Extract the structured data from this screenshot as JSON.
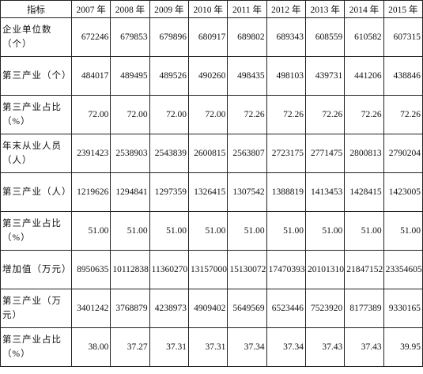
{
  "table": {
    "header": [
      "指标",
      "2007 年",
      "2008 年",
      "2009 年",
      "2010 年",
      "2011 年",
      "2012 年",
      "2013 年",
      "2014 年",
      "2015 年"
    ],
    "rows": [
      [
        "企业单位数（个）",
        "672246",
        "679853",
        "679896",
        "680917",
        "689802",
        "689343",
        "608559",
        "610582",
        "607315"
      ],
      [
        "第三产业（个）",
        "484017",
        "489495",
        "489526",
        "490260",
        "498435",
        "498103",
        "439731",
        "441206",
        "438846"
      ],
      [
        "第三产业占比（%）",
        "72.00",
        "72.00",
        "72.00",
        "72.00",
        "72.26",
        "72.26",
        "72.26",
        "72.26",
        "72.26"
      ],
      [
        "年末从业人员（人）",
        "2391423",
        "2538903",
        "2543839",
        "2600815",
        "2563807",
        "2723175",
        "2771475",
        "2800813",
        "2790204"
      ],
      [
        "第三产业（人）",
        "1219626",
        "1294841",
        "1297359",
        "1326415",
        "1307542",
        "1388819",
        "1413453",
        "1428415",
        "1423005"
      ],
      [
        "第三产业占比（%）",
        "51.00",
        "51.00",
        "51.00",
        "51.00",
        "51.00",
        "51.00",
        "51.00",
        "51.00",
        "51.00"
      ],
      [
        "增加值（万元）",
        "8950635",
        "10112838",
        "11360270",
        "13157000",
        "15130072",
        "17470393",
        "20101310",
        "21847152",
        "23354605"
      ],
      [
        "第三产业（万元）",
        "3401242",
        "3768879",
        "4238973",
        "4909402",
        "5649569",
        "6523446",
        "7523920",
        "8177389",
        "9330165"
      ],
      [
        "第三产业占比（%）",
        "38.00",
        "37.27",
        "37.31",
        "37.31",
        "37.34",
        "37.34",
        "37.43",
        "37.43",
        "39.95"
      ]
    ]
  }
}
